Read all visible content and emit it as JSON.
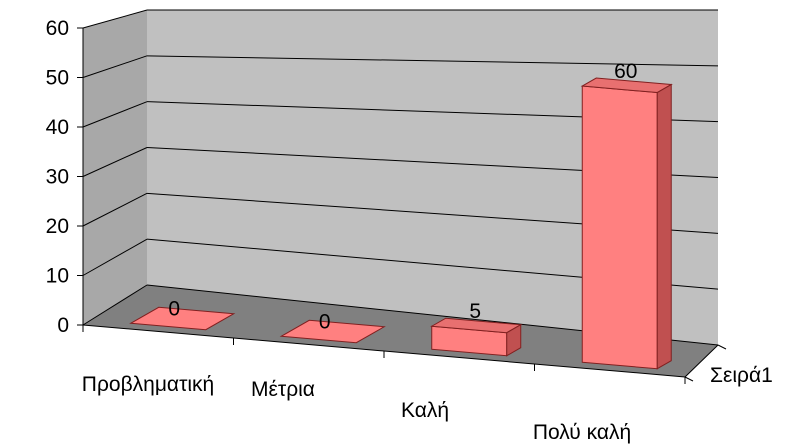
{
  "chart_data": {
    "type": "bar",
    "style": "3d-column",
    "categories": [
      "Προβληματική",
      "Μέτρια",
      "Καλή",
      "Πολύ καλή"
    ],
    "series": [
      {
        "name": "Σειρά1",
        "values": [
          0,
          0,
          5,
          60
        ]
      }
    ],
    "ylim": [
      0,
      60
    ],
    "yticks": [
      0,
      10,
      20,
      30,
      40,
      50,
      60
    ],
    "grid": true,
    "colors": {
      "bar_front": "#ff8080",
      "bar_top": "#e87070",
      "bar_side": "#c05050",
      "bar_outline": "#802020",
      "back_wall": "#c0c0c0",
      "side_wall": "#a8a8a8",
      "floor": "#808080",
      "gridline": "#000000"
    }
  }
}
